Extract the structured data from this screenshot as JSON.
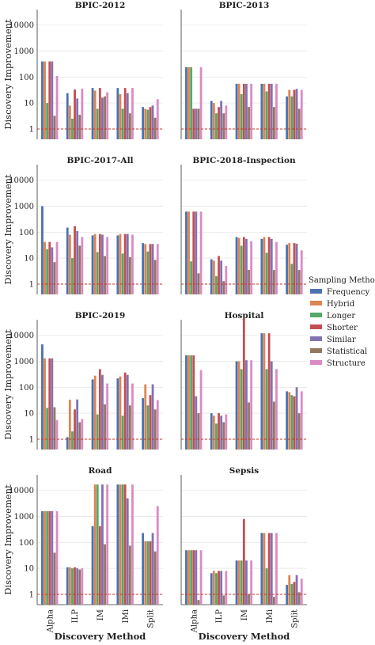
{
  "chart_data": {
    "type": "bar",
    "xlabel": "Discovery Method",
    "ylabel": "Discovery Improvement",
    "yscale": "log",
    "ylim": [
      0.4,
      40000
    ],
    "yticks": [
      1,
      10,
      100,
      1000,
      10000
    ],
    "ytick_labels": [
      "1",
      "10",
      "100",
      "1000",
      "10000"
    ],
    "reference_line": 1,
    "reference_line_color": "#c0392b",
    "grid": "horizontal",
    "categories": [
      "Alpha",
      "ILP",
      "IM",
      "IMi",
      "Split"
    ],
    "legend": {
      "title": "Sampling Method",
      "placement": "right",
      "entries": [
        "Frequency",
        "Hybrid",
        "Longer",
        "Shorter",
        "Similar",
        "Statistical",
        "Structure"
      ]
    },
    "series_colors": [
      "#4c72b0",
      "#dd8452",
      "#55a868",
      "#c44e52",
      "#8172b3",
      "#937860",
      "#da8bc3"
    ],
    "panels": [
      {
        "title": "BPIC-2012",
        "values": {
          "Alpha": [
            400,
            400,
            10,
            400,
            400,
            3.2,
            110
          ],
          "ILP": [
            24,
            8,
            2.5,
            33,
            15,
            3.5,
            36
          ],
          "IM": [
            38,
            30,
            6,
            38,
            16,
            18,
            26
          ],
          "IMi": [
            38,
            22,
            6,
            38,
            24,
            4,
            38
          ],
          "Split": [
            7,
            6,
            5.5,
            7,
            8,
            2.7,
            14
          ]
        }
      },
      {
        "title": "BPIC-2013",
        "values": {
          "Alpha": [
            240,
            240,
            240,
            6,
            6,
            6,
            240
          ],
          "ILP": [
            12,
            10,
            4,
            7,
            12,
            4,
            8
          ],
          "IM": [
            55,
            55,
            22,
            55,
            55,
            7,
            55
          ],
          "IMi": [
            55,
            55,
            28,
            55,
            55,
            7,
            55
          ],
          "Split": [
            18,
            32,
            18,
            32,
            35,
            6,
            32
          ]
        }
      },
      {
        "title": "BPIC-2017-All",
        "values": {
          "Alpha": [
            1000,
            42,
            22,
            42,
            26,
            7,
            42
          ],
          "ILP": [
            150,
            80,
            10,
            170,
            110,
            30,
            65
          ],
          "IM": [
            75,
            85,
            17,
            85,
            80,
            12,
            65
          ],
          "IMi": [
            75,
            85,
            15,
            85,
            85,
            11,
            80
          ],
          "Split": [
            38,
            35,
            18,
            35,
            35,
            8.5,
            35
          ]
        }
      },
      {
        "title": "BPIC-2018-Inspection",
        "values": {
          "Alpha": [
            620,
            620,
            7.5,
            620,
            620,
            2.6,
            620
          ],
          "ILP": [
            9,
            8,
            2,
            12,
            8,
            1.3,
            5
          ],
          "IM": [
            65,
            60,
            30,
            65,
            55,
            3.5,
            45
          ],
          "IMi": [
            55,
            65,
            16,
            65,
            55,
            3.5,
            42
          ],
          "Split": [
            33,
            38,
            6,
            38,
            36,
            3.5,
            20
          ]
        }
      },
      {
        "title": "BPIC-2019",
        "values": {
          "Alpha": [
            4500,
            1300,
            16,
            1300,
            1300,
            17,
            5.5
          ],
          "ILP": [
            1.2,
            33,
            2,
            14,
            34,
            4.5,
            6
          ],
          "IM": [
            200,
            280,
            9,
            500,
            300,
            22,
            140
          ],
          "IMi": [
            220,
            260,
            8,
            370,
            300,
            20,
            140
          ],
          "Split": [
            38,
            130,
            20,
            50,
            130,
            14,
            32
          ]
        }
      },
      {
        "title": "Hospital",
        "values": {
          "Alpha": [
            1700,
            1700,
            1700,
            1700,
            45,
            10,
            460
          ],
          "ILP": [
            10,
            8,
            4,
            10,
            8,
            4.5,
            9
          ],
          "IM": [
            1000,
            1000,
            500,
            45000,
            1100,
            26,
            1100
          ],
          "IMi": [
            12000,
            12000,
            500,
            12000,
            1000,
            28,
            500
          ],
          "Split": [
            70,
            65,
            50,
            45,
            100,
            10,
            70
          ]
        }
      },
      {
        "title": "Road",
        "values": {
          "Alpha": [
            1600,
            1600,
            1600,
            1600,
            1600,
            40,
            1600
          ],
          "ILP": [
            11,
            11,
            10,
            11,
            10,
            9,
            10
          ],
          "IM": [
            420,
            17000,
            17000,
            420,
            17000,
            85,
            17000
          ],
          "IMi": [
            17000,
            17000,
            17000,
            17000,
            5000,
            75,
            17000
          ],
          "Split": [
            230,
            110,
            110,
            110,
            230,
            45,
            2500
          ]
        }
      },
      {
        "title": "Sepsis",
        "values": {
          "Alpha": [
            50,
            50,
            50,
            50,
            50,
            0.6,
            50
          ],
          "ILP": [
            6.5,
            8,
            6.5,
            8,
            8,
            0.9,
            8
          ],
          "IM": [
            20,
            20,
            20,
            800,
            20,
            1,
            20
          ],
          "IMi": [
            230,
            230,
            10,
            230,
            230,
            0.8,
            230
          ],
          "Split": [
            2.3,
            5.5,
            2.5,
            3,
            5.5,
            1.2,
            4
          ]
        }
      }
    ]
  }
}
